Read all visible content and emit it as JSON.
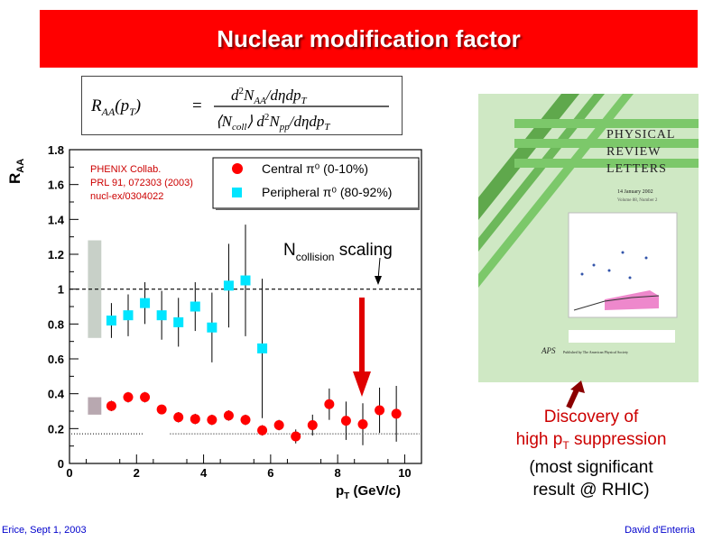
{
  "slide": {
    "title": "Nuclear modification factor",
    "footer_left": "Erice, Sept 1, 2003",
    "footer_right": "David d'Enterria",
    "discovery_line1": "Discovery of",
    "discovery_line2_pre": "high p",
    "discovery_line2_sub": "T",
    "discovery_line2_post": " suppression",
    "significance_line1": "(most significant",
    "significance_line2": "result @ RHIC)",
    "colors": {
      "title_bg": "#ff0000",
      "accent_red": "#cc0000",
      "footer_blue": "#0000cc",
      "central": "#ff0000",
      "peripheral": "#00e5ff"
    }
  },
  "formula": {
    "lhs": "R",
    "lhs_sub": "AA",
    "lhs_arg": "(p",
    "lhs_arg_sub": "T",
    "lhs_arg_close": ")",
    "equals": "=",
    "numerator": "d",
    "numerator_sup": "2",
    "numerator_N": "N",
    "numerator_sub": "AA",
    "numerator_rest": "/dηdp",
    "numerator_rest_sub": "T",
    "den_open": "⟨N",
    "den_coll": "coll",
    "den_close": "⟩ d",
    "den_sup": "2",
    "den_N": "N",
    "den_sub": "pp",
    "den_rest": "/dηdp",
    "den_rest_sub": "T"
  },
  "chart_data": {
    "type": "scatter",
    "ylabel": "R",
    "ylabel_sub": "AA",
    "xlabel_pre": "p",
    "xlabel_sub": "T",
    "xlabel_post": " (GeV/c)",
    "xlim": [
      0,
      10.5
    ],
    "ylim": [
      0,
      1.8
    ],
    "xticks": [
      0,
      2,
      4,
      6,
      8,
      10
    ],
    "xtick_labels": [
      "0",
      "2",
      "4",
      "6",
      "8",
      "10"
    ],
    "yticks": [
      0,
      0.2,
      0.4,
      0.6,
      0.8,
      1.0,
      1.2,
      1.4,
      1.6,
      1.8
    ],
    "ytick_labels": [
      "0",
      "0.2",
      "0.4",
      "0.6",
      "0.8",
      "1",
      "1.2",
      "1.4",
      "1.6",
      "1.8"
    ],
    "reference": {
      "label_pre": "N",
      "label_sub": "collision",
      "label_post": " scaling"
    },
    "citation": [
      "PHENIX Collab.",
      "PRL 91, 072303 (2003)",
      "nucl-ex/0304022"
    ],
    "series": [
      {
        "name": "Central π⁰ (0-10%)",
        "marker": "circle",
        "color": "#ff0000",
        "x": [
          1.25,
          1.75,
          2.25,
          2.75,
          3.25,
          3.75,
          4.25,
          4.75,
          5.25,
          5.75,
          6.25,
          6.75,
          7.25,
          7.75,
          8.25,
          8.75,
          9.25,
          9.75
        ],
        "y": [
          0.33,
          0.38,
          0.38,
          0.31,
          0.265,
          0.255,
          0.25,
          0.275,
          0.25,
          0.19,
          0.22,
          0.155,
          0.22,
          0.34,
          0.245,
          0.225,
          0.305,
          0.285
        ],
        "err": [
          0.03,
          0.03,
          0.03,
          0.02,
          0.03,
          0.03,
          0.03,
          0.03,
          0.03,
          0.03,
          0.03,
          0.04,
          0.06,
          0.09,
          0.11,
          0.12,
          0.13,
          0.16
        ]
      },
      {
        "name": "Peripheral π⁰ (80-92%)",
        "marker": "square",
        "color": "#00e5ff",
        "x": [
          1.25,
          1.75,
          2.25,
          2.75,
          3.25,
          3.75,
          4.25,
          4.75,
          5.25,
          5.75
        ],
        "y": [
          0.82,
          0.85,
          0.92,
          0.85,
          0.81,
          0.9,
          0.78,
          1.02,
          1.05,
          0.66
        ],
        "err": [
          0.1,
          0.12,
          0.12,
          0.14,
          0.14,
          0.14,
          0.2,
          0.24,
          0.32,
          0.4
        ]
      }
    ],
    "systematic_bands": [
      {
        "series": "Peripheral",
        "center": 1.0,
        "half_height": 0.28,
        "color": "#c8d0c8"
      },
      {
        "series": "Central",
        "center": 0.33,
        "half_height": 0.05,
        "color": "#b8a8b0"
      }
    ],
    "central_reference_level": 0.17
  },
  "journal_cover": {
    "title_lines": [
      "PHYSICAL",
      "REVIEW",
      "LETTERS"
    ],
    "date": "14 January 2002",
    "volume": "Volume 88, Number 2",
    "publisher_mark": "APS",
    "publisher_text": "Published by The American Physical Society"
  }
}
